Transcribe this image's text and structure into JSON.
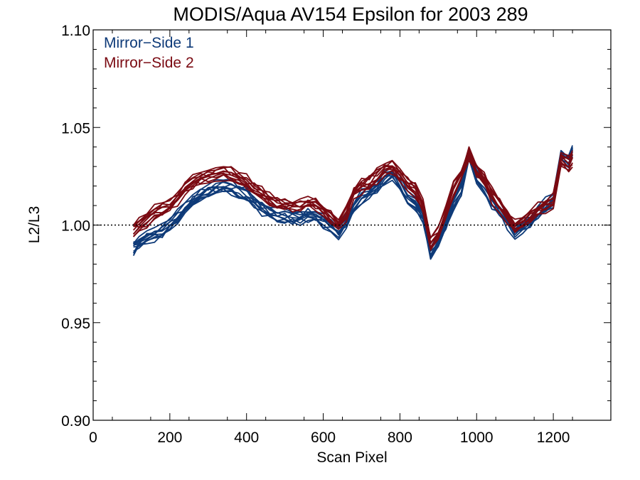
{
  "chart_data": {
    "type": "line",
    "title": "MODIS/Aqua AV154 Epsilon for 2003 289",
    "xlabel": "Scan Pixel",
    "ylabel": "L2/L3",
    "xlim": [
      0,
      1350
    ],
    "ylim": [
      0.9,
      1.1
    ],
    "x_ticks": [
      0,
      200,
      400,
      600,
      800,
      1000,
      1200
    ],
    "x_tick_labels": [
      "0",
      "200",
      "400",
      "600",
      "800",
      "1000",
      "1200"
    ],
    "y_ticks": [
      0.9,
      0.95,
      1.0,
      1.05,
      1.1
    ],
    "y_tick_labels": [
      "0.90",
      "0.95",
      "1.00",
      "1.05",
      "1.10"
    ],
    "reference_line": {
      "y": 1.0,
      "style": "dotted"
    },
    "legend_position": "top-left",
    "grid": false,
    "lines_per_series": 10,
    "x": [
      105,
      120,
      140,
      160,
      180,
      200,
      220,
      240,
      260,
      280,
      300,
      320,
      340,
      360,
      380,
      400,
      420,
      440,
      460,
      480,
      500,
      520,
      540,
      560,
      580,
      600,
      620,
      640,
      660,
      680,
      700,
      720,
      740,
      760,
      780,
      800,
      820,
      840,
      860,
      880,
      900,
      920,
      940,
      960,
      980,
      1000,
      1020,
      1040,
      1060,
      1080,
      1100,
      1120,
      1140,
      1160,
      1180,
      1200,
      1220,
      1240,
      1250
    ],
    "series": [
      {
        "name": "Mirror−Side 1",
        "color": "#0e3a78",
        "values": [
          0.989,
          0.991,
          0.994,
          0.995,
          0.997,
          1.0,
          1.004,
          1.008,
          1.012,
          1.015,
          1.017,
          1.019,
          1.02,
          1.019,
          1.017,
          1.015,
          1.012,
          1.009,
          1.007,
          1.005,
          1.004,
          1.003,
          1.004,
          1.005,
          1.004,
          1.002,
          0.999,
          0.996,
          1.002,
          1.008,
          1.014,
          1.017,
          1.02,
          1.024,
          1.027,
          1.022,
          1.014,
          1.011,
          1.004,
          0.985,
          0.991,
          1.0,
          1.012,
          1.019,
          1.037,
          1.025,
          1.02,
          1.012,
          1.008,
          1.002,
          0.996,
          0.999,
          1.002,
          1.006,
          1.01,
          1.013,
          1.035,
          1.033,
          1.038
        ]
      },
      {
        "name": "Mirror−Side 2",
        "color": "#7a0a12",
        "values": [
          0.997,
          1.0,
          1.003,
          1.006,
          1.008,
          1.01,
          1.014,
          1.019,
          1.022,
          1.024,
          1.025,
          1.026,
          1.027,
          1.026,
          1.024,
          1.022,
          1.019,
          1.016,
          1.013,
          1.011,
          1.01,
          1.009,
          1.01,
          1.012,
          1.011,
          1.008,
          1.004,
          1.0,
          1.006,
          1.017,
          1.02,
          1.022,
          1.025,
          1.029,
          1.03,
          1.026,
          1.021,
          1.018,
          1.01,
          0.991,
          0.995,
          1.006,
          1.019,
          1.025,
          1.037,
          1.028,
          1.023,
          1.015,
          1.01,
          1.005,
          0.999,
          1.002,
          1.005,
          1.008,
          1.01,
          1.012,
          1.034,
          1.032,
          1.034
        ]
      }
    ]
  }
}
